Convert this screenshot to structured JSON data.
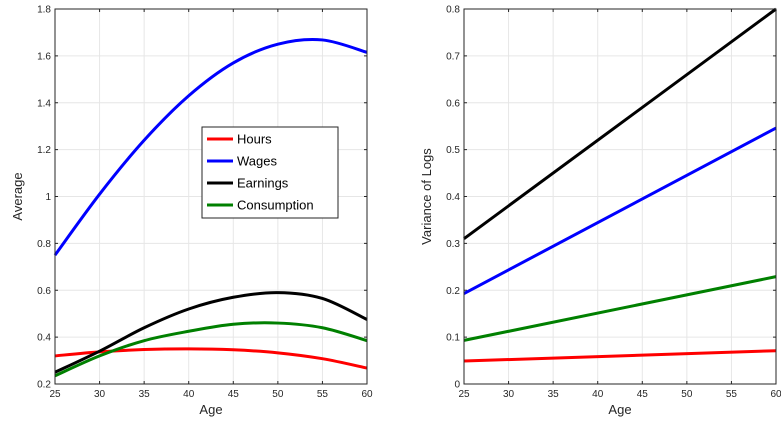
{
  "chart_data": [
    {
      "type": "line",
      "title": "",
      "xlabel": "Age",
      "ylabel": "Average",
      "xlim": [
        25,
        60
      ],
      "ylim": [
        0.2,
        1.8
      ],
      "xticks": [
        "25",
        "30",
        "35",
        "40",
        "45",
        "50",
        "55",
        "60"
      ],
      "yticks": [
        "0.2",
        "0.4",
        "0.6",
        "0.8",
        "1",
        "1.2",
        "1.4",
        "1.6",
        "1.8"
      ],
      "grid": true,
      "legend": "center-right",
      "x": [
        25,
        30,
        35,
        40,
        45,
        50,
        55,
        60
      ],
      "series": [
        {
          "name": "Hours",
          "color": "#ff0000",
          "values": [
            0.32,
            0.337,
            0.347,
            0.35,
            0.346,
            0.333,
            0.308,
            0.268
          ]
        },
        {
          "name": "Wages",
          "color": "#0000ff",
          "values": [
            0.75,
            1.01,
            1.24,
            1.43,
            1.57,
            1.65,
            1.668,
            1.615
          ]
        },
        {
          "name": "Earnings",
          "color": "#000000",
          "values": [
            0.25,
            0.34,
            0.44,
            0.52,
            0.57,
            0.59,
            0.565,
            0.475
          ]
        },
        {
          "name": "Consumption",
          "color": "#008000",
          "values": [
            0.235,
            0.32,
            0.385,
            0.425,
            0.455,
            0.46,
            0.44,
            0.385
          ]
        }
      ]
    },
    {
      "type": "line",
      "title": "",
      "xlabel": "Age",
      "ylabel": "Variance of Logs",
      "xlim": [
        25,
        60
      ],
      "ylim": [
        0,
        0.8
      ],
      "xticks": [
        "25",
        "30",
        "35",
        "40",
        "45",
        "50",
        "55",
        "60"
      ],
      "yticks": [
        "0",
        "0.1",
        "0.2",
        "0.3",
        "0.4",
        "0.5",
        "0.6",
        "0.7",
        "0.8"
      ],
      "grid": true,
      "x": [
        25,
        60
      ],
      "series": [
        {
          "color": "#ff0000",
          "values": [
            0.049,
            0.071
          ]
        },
        {
          "color": "#0000ff",
          "values": [
            0.193,
            0.546
          ]
        },
        {
          "color": "#000000",
          "values": [
            0.31,
            0.8
          ]
        },
        {
          "color": "#008000",
          "values": [
            0.093,
            0.229
          ]
        }
      ]
    }
  ]
}
